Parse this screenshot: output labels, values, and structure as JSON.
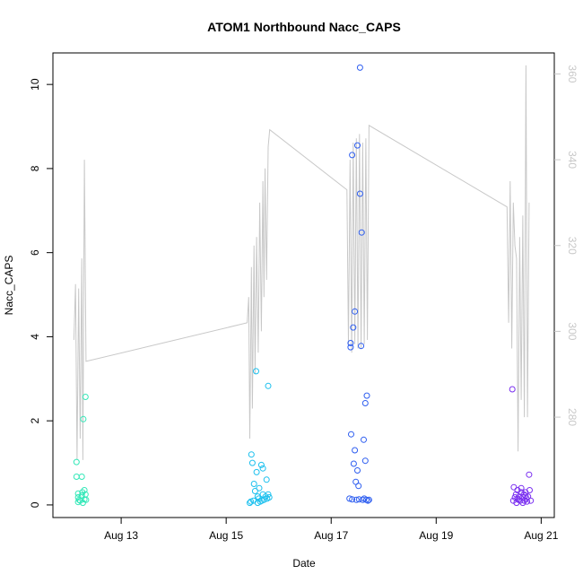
{
  "chart_data": {
    "type": "scatter",
    "title": "ATOM1 Northbound Nacc_CAPS",
    "xlabel": "Date",
    "ylabel": "Nacc_CAPS",
    "y2label": "",
    "x_unit": "days in August 2024 (fractional day-of-month)",
    "xlim": [
      11.7,
      21.25
    ],
    "ylim": [
      -0.3,
      10.75
    ],
    "y2lim": [
      256.6,
      364.9
    ],
    "x_ticks": [
      {
        "value": 13,
        "label": "Aug 13"
      },
      {
        "value": 15,
        "label": "Aug 15"
      },
      {
        "value": 17,
        "label": "Aug 17"
      },
      {
        "value": 19,
        "label": "Aug 19"
      },
      {
        "value": 21,
        "label": "Aug 21"
      }
    ],
    "y_ticks": [
      0,
      2,
      4,
      6,
      8,
      10
    ],
    "y2_ticks": [
      280,
      300,
      320,
      340,
      360
    ],
    "grid": false,
    "legend": "none",
    "colors": {
      "group1": "#33e8b8",
      "group2": "#1cc0ee",
      "group3": "#2e5ef0",
      "group4": "#7a2ff0",
      "secondary_line": "#c8c8c8"
    },
    "series": [
      {
        "group": "group1",
        "points": [
          [
            12.15,
            1.02
          ],
          [
            12.15,
            0.67
          ],
          [
            12.18,
            0.27
          ],
          [
            12.18,
            0.18
          ],
          [
            12.18,
            0.07
          ],
          [
            12.2,
            0.12
          ],
          [
            12.25,
            0.22
          ],
          [
            12.25,
            0.67
          ],
          [
            12.27,
            0.05
          ],
          [
            12.28,
            2.04
          ],
          [
            12.3,
            0.13
          ],
          [
            12.3,
            0.35
          ],
          [
            12.32,
            2.57
          ],
          [
            12.32,
            0.25
          ],
          [
            12.33,
            0.12
          ],
          [
            12.22,
            0.1
          ],
          [
            12.26,
            0.3
          ]
        ]
      },
      {
        "group": "group2",
        "points": [
          [
            15.45,
            0.05
          ],
          [
            15.47,
            0.08
          ],
          [
            15.48,
            1.2
          ],
          [
            15.5,
            1.0
          ],
          [
            15.52,
            0.1
          ],
          [
            15.53,
            0.5
          ],
          [
            15.55,
            0.33
          ],
          [
            15.57,
            3.18
          ],
          [
            15.58,
            0.78
          ],
          [
            15.6,
            0.2
          ],
          [
            15.62,
            0.15
          ],
          [
            15.63,
            0.4
          ],
          [
            15.65,
            0.08
          ],
          [
            15.67,
            0.95
          ],
          [
            15.68,
            0.1
          ],
          [
            15.7,
            0.87
          ],
          [
            15.7,
            0.25
          ],
          [
            15.72,
            0.12
          ],
          [
            15.75,
            0.2
          ],
          [
            15.77,
            0.6
          ],
          [
            15.78,
            0.15
          ],
          [
            15.8,
            0.25
          ],
          [
            15.8,
            2.83
          ],
          [
            15.82,
            0.18
          ],
          [
            15.6,
            0.05
          ]
        ]
      },
      {
        "group": "group3",
        "points": [
          [
            17.35,
            0.15
          ],
          [
            17.37,
            3.85
          ],
          [
            17.37,
            3.75
          ],
          [
            17.38,
            1.68
          ],
          [
            17.4,
            0.13
          ],
          [
            17.4,
            8.32
          ],
          [
            17.42,
            4.22
          ],
          [
            17.43,
            0.98
          ],
          [
            17.45,
            4.6
          ],
          [
            17.45,
            1.3
          ],
          [
            17.47,
            0.55
          ],
          [
            17.48,
            0.12
          ],
          [
            17.5,
            8.55
          ],
          [
            17.5,
            0.82
          ],
          [
            17.52,
            0.45
          ],
          [
            17.53,
            0.13
          ],
          [
            17.55,
            10.4
          ],
          [
            17.55,
            7.4
          ],
          [
            17.57,
            3.78
          ],
          [
            17.58,
            6.48
          ],
          [
            17.6,
            0.12
          ],
          [
            17.62,
            1.55
          ],
          [
            17.63,
            0.15
          ],
          [
            17.65,
            2.42
          ],
          [
            17.65,
            1.05
          ],
          [
            17.67,
            0.12
          ],
          [
            17.68,
            2.6
          ],
          [
            17.7,
            0.1
          ],
          [
            17.72,
            0.12
          ]
        ]
      },
      {
        "group": "group4",
        "points": [
          [
            20.45,
            2.75
          ],
          [
            20.47,
            0.1
          ],
          [
            20.48,
            0.42
          ],
          [
            20.5,
            0.18
          ],
          [
            20.52,
            0.25
          ],
          [
            20.53,
            0.05
          ],
          [
            20.55,
            0.35
          ],
          [
            20.57,
            0.12
          ],
          [
            20.58,
            0.2
          ],
          [
            20.6,
            0.1
          ],
          [
            20.62,
            0.3
          ],
          [
            20.62,
            0.4
          ],
          [
            20.65,
            0.18
          ],
          [
            20.67,
            0.25
          ],
          [
            20.68,
            0.1
          ],
          [
            20.7,
            0.22
          ],
          [
            20.72,
            0.15
          ],
          [
            20.73,
            0.08
          ],
          [
            20.75,
            0.2
          ],
          [
            20.77,
            0.72
          ],
          [
            20.78,
            0.35
          ],
          [
            20.8,
            0.1
          ],
          [
            20.55,
            0.15
          ],
          [
            20.65,
            0.05
          ],
          [
            20.7,
            0.3
          ]
        ]
      }
    ],
    "secondary_line": {
      "axis": "right",
      "points": [
        [
          12.1,
          298
        ],
        [
          12.13,
          311
        ],
        [
          12.16,
          270
        ],
        [
          12.19,
          310
        ],
        [
          12.22,
          275
        ],
        [
          12.25,
          317
        ],
        [
          12.27,
          270
        ],
        [
          12.3,
          340
        ],
        [
          12.33,
          293
        ],
        [
          15.4,
          302
        ],
        [
          15.43,
          308
        ],
        [
          15.45,
          275
        ],
        [
          15.48,
          315
        ],
        [
          15.5,
          282
        ],
        [
          15.53,
          320
        ],
        [
          15.55,
          290
        ],
        [
          15.58,
          322
        ],
        [
          15.61,
          295
        ],
        [
          15.64,
          330
        ],
        [
          15.67,
          300
        ],
        [
          15.7,
          335
        ],
        [
          15.72,
          308
        ],
        [
          15.74,
          338
        ],
        [
          15.77,
          312
        ],
        [
          15.8,
          343
        ],
        [
          15.83,
          347
        ],
        [
          17.3,
          333
        ],
        [
          17.33,
          297
        ],
        [
          17.36,
          340
        ],
        [
          17.39,
          295
        ],
        [
          17.42,
          344
        ],
        [
          17.45,
          297
        ],
        [
          17.48,
          345
        ],
        [
          17.51,
          296
        ],
        [
          17.54,
          346
        ],
        [
          17.57,
          296
        ],
        [
          17.6,
          344
        ],
        [
          17.63,
          297
        ],
        [
          17.66,
          345
        ],
        [
          17.69,
          298
        ],
        [
          17.72,
          348
        ],
        [
          20.35,
          329
        ],
        [
          20.38,
          302
        ],
        [
          20.41,
          335
        ],
        [
          20.44,
          296
        ],
        [
          20.47,
          330
        ],
        [
          20.5,
          320
        ],
        [
          20.53,
          317
        ],
        [
          20.56,
          272
        ],
        [
          20.59,
          322
        ],
        [
          20.62,
          284
        ],
        [
          20.65,
          327
        ],
        [
          20.68,
          280
        ],
        [
          20.71,
          362
        ],
        [
          20.74,
          280
        ],
        [
          20.77,
          330
        ]
      ]
    }
  }
}
